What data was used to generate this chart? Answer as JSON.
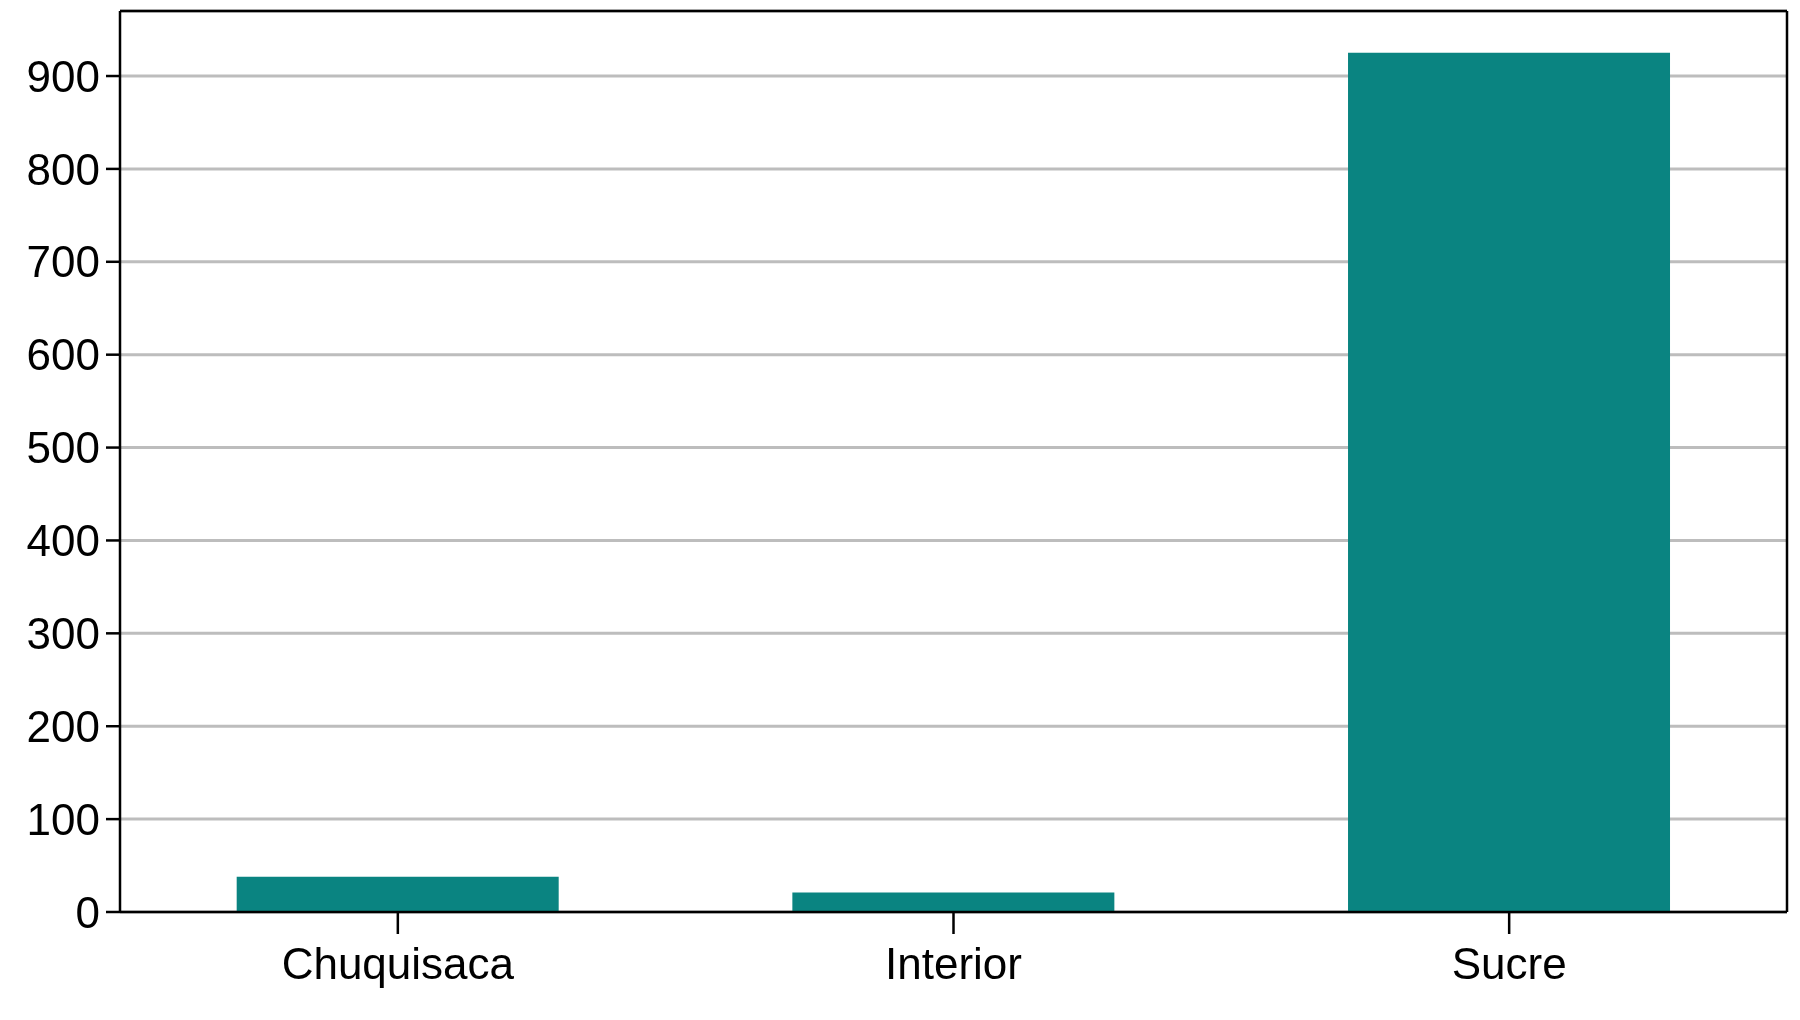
{
  "chart_data": {
    "type": "bar",
    "categories": [
      "Chuquisaca",
      "Interior",
      "Sucre"
    ],
    "values": [
      38,
      21,
      925
    ],
    "color": "#0a8481",
    "ylim": [
      0,
      970
    ],
    "yticks": [
      0,
      100,
      200,
      300,
      400,
      500,
      600,
      700,
      800,
      900
    ],
    "grid": "y"
  }
}
